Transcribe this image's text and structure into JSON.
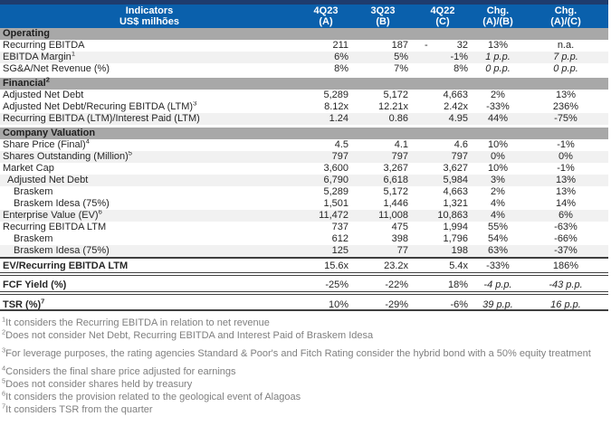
{
  "header": {
    "indicator_line1": "Indicators",
    "indicator_line2": "US$ milhões",
    "columns": [
      {
        "line1": "4Q23",
        "line2": "(A)"
      },
      {
        "line1": "3Q23",
        "line2": "(B)"
      },
      {
        "line1": "4Q22",
        "line2": "(C)"
      },
      {
        "line1": "Chg.",
        "line2": "(A)/(B)"
      },
      {
        "line1": "Chg.",
        "line2": "(A)/(C)"
      }
    ]
  },
  "sections": [
    {
      "title": "Operating",
      "sup": "",
      "rows": [
        {
          "label": "Recurring EBITDA",
          "sup": "",
          "indent": 0,
          "stripe": false,
          "bold": false,
          "style": "",
          "values": [
            "211",
            "187",
            "- 32",
            "13%",
            "n.a."
          ]
        },
        {
          "label": "EBITDA Margin",
          "sup": "1",
          "indent": 0,
          "stripe": true,
          "bold": false,
          "style": "",
          "values": [
            "6%",
            "5%",
            "-1%",
            "1 p.p.",
            "7 p.p."
          ]
        },
        {
          "label": "SG&A/Net Revenue (%)",
          "sup": "",
          "indent": 0,
          "stripe": false,
          "bold": false,
          "style": "",
          "values": [
            "8%",
            "7%",
            "8%",
            "0 p.p.",
            "0 p.p."
          ]
        }
      ]
    },
    {
      "title": "Financial",
      "sup": "2",
      "rows": [
        {
          "label": "Adjusted Net Debt",
          "sup": "",
          "indent": 0,
          "stripe": false,
          "bold": false,
          "style": "",
          "values": [
            "5,289",
            "5,172",
            "4,663",
            "2%",
            "13%"
          ]
        },
        {
          "label": "Adjusted Net Debt/Recuring EBITDA (LTM)",
          "sup": "3",
          "indent": 0,
          "stripe": false,
          "bold": false,
          "style": "",
          "values": [
            "8.12x",
            "12.21x",
            "2.42x",
            "-33%",
            "236%"
          ]
        },
        {
          "label": "Recurring EBITDA (LTM)/Interest Paid (LTM)",
          "sup": "",
          "indent": 0,
          "stripe": true,
          "bold": false,
          "style": "",
          "values": [
            "1.24",
            "0.86",
            "4.95",
            "44%",
            "-75%"
          ]
        }
      ]
    },
    {
      "title": "Company Valuation",
      "sup": "",
      "rows": [
        {
          "label": "Share Price (Final)",
          "sup": "4",
          "indent": 0,
          "stripe": false,
          "bold": false,
          "style": "",
          "values": [
            "4.5",
            "4.1",
            "4.6",
            "10%",
            "-1%"
          ]
        },
        {
          "label": "Shares Outstanding (Million)",
          "sup": "5",
          "indent": 0,
          "stripe": true,
          "bold": false,
          "style": "",
          "values": [
            "797",
            "797",
            "797",
            "0%",
            "0%"
          ]
        },
        {
          "label": "Market Cap",
          "sup": "",
          "indent": 0,
          "stripe": false,
          "bold": false,
          "style": "",
          "values": [
            "3,600",
            "3,267",
            "3,627",
            "10%",
            "-1%"
          ]
        },
        {
          "label": "Adjusted Net Debt",
          "sup": "",
          "indent": 1,
          "stripe": true,
          "bold": false,
          "style": "",
          "values": [
            "6,790",
            "6,618",
            "5,984",
            "3%",
            "13%"
          ]
        },
        {
          "label": "Braskem",
          "sup": "",
          "indent": 2,
          "stripe": false,
          "bold": false,
          "style": "",
          "values": [
            "5,289",
            "5,172",
            "4,663",
            "2%",
            "13%"
          ]
        },
        {
          "label": "Braskem Idesa (75%)",
          "sup": "",
          "indent": 2,
          "stripe": false,
          "bold": false,
          "style": "",
          "values": [
            "1,501",
            "1,446",
            "1,321",
            "4%",
            "14%"
          ]
        },
        {
          "label": "Enterprise Value (EV)",
          "sup": "6",
          "indent": 0,
          "stripe": true,
          "bold": false,
          "style": "",
          "values": [
            "11,472",
            "11,008",
            "10,863",
            "4%",
            "6%"
          ]
        },
        {
          "label": "Recurring EBITDA LTM",
          "sup": "",
          "indent": 0,
          "stripe": false,
          "bold": false,
          "style": "",
          "values": [
            "737",
            "475",
            "1,994",
            "55%",
            "-63%"
          ]
        },
        {
          "label": "Braskem",
          "sup": "",
          "indent": 2,
          "stripe": false,
          "bold": false,
          "style": "",
          "values": [
            "612",
            "398",
            "1,796",
            "54%",
            "-66%"
          ]
        },
        {
          "label": "Braskem Idesa (75%)",
          "sup": "",
          "indent": 2,
          "stripe": true,
          "bold": false,
          "style": "",
          "values": [
            "125",
            "77",
            "198",
            "63%",
            "-37%"
          ]
        },
        {
          "label": "EV/Recurring EBITDA LTM",
          "sup": "",
          "indent": 0,
          "stripe": false,
          "bold": true,
          "style": "ev",
          "values": [
            "15.6x",
            "23.2x",
            "5.4x",
            "-33%",
            "186%"
          ]
        },
        {
          "label": "FCF Yield (%)",
          "sup": "",
          "indent": 0,
          "stripe": false,
          "bold": true,
          "style": "fcf",
          "values": [
            "-25%",
            "-22%",
            "18%",
            "-4 p.p.",
            "-43 p.p."
          ]
        },
        {
          "label": "TSR (%)",
          "sup": "7",
          "indent": 0,
          "stripe": false,
          "bold": true,
          "style": "tsr",
          "values": [
            "10%",
            "-29%",
            "-6%",
            "39 p.p.",
            "16 p.p."
          ]
        }
      ]
    }
  ],
  "footnotes": [
    {
      "sup": "1",
      "text": "It considers the Recurring EBITDA in relation to net revenue",
      "gap": false
    },
    {
      "sup": "2",
      "text": "Does not consider Net Debt, Recurring EBITDA and Interest Paid of Braskem Idesa",
      "gap": false
    },
    {
      "sup": "3",
      "text": "For leverage purposes, the rating agencies Standard & Poor's and Fitch Rating consider the hybrid bond with a 50% equity treatment",
      "gap": true
    },
    {
      "sup": "4",
      "text": "Considers the final share price adjusted for earnings",
      "gap": true
    },
    {
      "sup": "5",
      "text": "Does not consider shares held by treasury",
      "gap": false
    },
    {
      "sup": "6",
      "text": "It considers the provision related to the geological event of Alagoas",
      "gap": false
    },
    {
      "sup": "7",
      "text": "It considers TSR from the quarter",
      "gap": false
    }
  ],
  "colors": {
    "header_blue": "#0A60AC",
    "top_navy": "#1E3C6E",
    "section_gray": "#A8A8A8",
    "stripe_gray": "#F1F1F1",
    "border_dark": "#3F3F3F",
    "footnote_gray": "#7F7F7F"
  }
}
